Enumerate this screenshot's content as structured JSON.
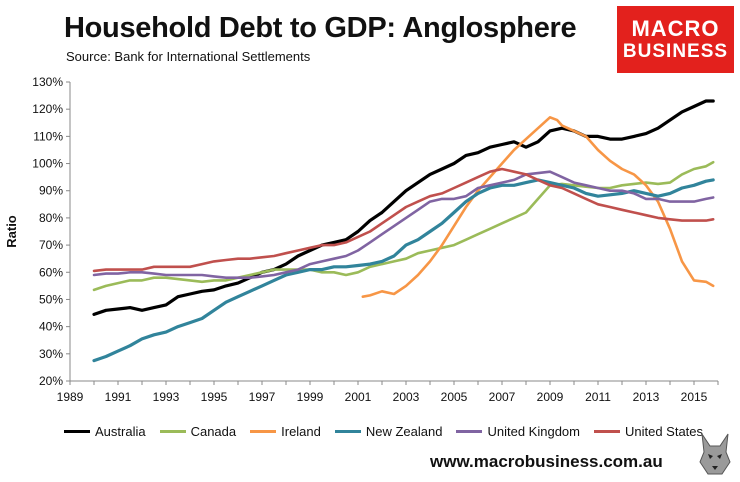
{
  "header": {
    "title": "Household Debt to GDP: Anglosphere",
    "subtitle": "Source: Bank for International Settlements"
  },
  "logo": {
    "line1": "MACRO",
    "line2": "BUSINESS",
    "color": "#e3211d"
  },
  "footer": {
    "url": "www.macrobusiness.com.au"
  },
  "chart_data": {
    "type": "line",
    "title": "Household Debt to GDP: Anglosphere",
    "xlabel": "",
    "ylabel": "Ratio",
    "xlim": [
      1989,
      2016
    ],
    "ylim": [
      20,
      130
    ],
    "x_ticks": [
      "1989",
      "1991",
      "1993",
      "1995",
      "1997",
      "1999",
      "2001",
      "2003",
      "2005",
      "2007",
      "2009",
      "2011",
      "2013",
      "2015"
    ],
    "y_ticks": [
      "20%",
      "30%",
      "40%",
      "50%",
      "60%",
      "70%",
      "80%",
      "90%",
      "100%",
      "110%",
      "120%",
      "130%"
    ],
    "grid": false,
    "legend": "bottom",
    "series": [
      {
        "name": "Australia",
        "color": "#000000",
        "width": 3.2,
        "points": [
          [
            1990,
            44.5
          ],
          [
            1990.5,
            46
          ],
          [
            1991,
            46.5
          ],
          [
            1991.5,
            47
          ],
          [
            1992,
            46
          ],
          [
            1992.5,
            47
          ],
          [
            1993,
            48
          ],
          [
            1993.5,
            51
          ],
          [
            1994,
            52
          ],
          [
            1994.5,
            53
          ],
          [
            1995,
            53.5
          ],
          [
            1995.5,
            55
          ],
          [
            1996,
            56
          ],
          [
            1996.5,
            58
          ],
          [
            1997,
            60
          ],
          [
            1997.5,
            61
          ],
          [
            1998,
            63
          ],
          [
            1998.5,
            66
          ],
          [
            1999,
            68
          ],
          [
            1999.5,
            70
          ],
          [
            2000,
            71
          ],
          [
            2000.5,
            72
          ],
          [
            2001,
            75
          ],
          [
            2001.5,
            79
          ],
          [
            2002,
            82
          ],
          [
            2002.5,
            86
          ],
          [
            2003,
            90
          ],
          [
            2003.5,
            93
          ],
          [
            2004,
            96
          ],
          [
            2004.5,
            98
          ],
          [
            2005,
            100
          ],
          [
            2005.5,
            103
          ],
          [
            2006,
            104
          ],
          [
            2006.5,
            106
          ],
          [
            2007,
            107
          ],
          [
            2007.5,
            108
          ],
          [
            2008,
            106
          ],
          [
            2008.5,
            108
          ],
          [
            2009,
            112
          ],
          [
            2009.5,
            113
          ],
          [
            2010,
            112
          ],
          [
            2010.5,
            110
          ],
          [
            2011,
            110
          ],
          [
            2011.5,
            109
          ],
          [
            2012,
            109
          ],
          [
            2012.5,
            110
          ],
          [
            2013,
            111
          ],
          [
            2013.5,
            113
          ],
          [
            2014,
            116
          ],
          [
            2014.5,
            119
          ],
          [
            2015,
            121
          ],
          [
            2015.5,
            123
          ],
          [
            2015.8,
            123
          ]
        ]
      },
      {
        "name": "Canada",
        "color": "#9bbb59",
        "width": 2.6,
        "points": [
          [
            1990,
            53.5
          ],
          [
            1990.5,
            55
          ],
          [
            1991,
            56
          ],
          [
            1991.5,
            57
          ],
          [
            1992,
            57
          ],
          [
            1992.5,
            58
          ],
          [
            1993,
            58
          ],
          [
            1993.5,
            57.5
          ],
          [
            1994,
            57
          ],
          [
            1994.5,
            56.5
          ],
          [
            1995,
            57
          ],
          [
            1995.5,
            57
          ],
          [
            1996,
            58
          ],
          [
            1996.5,
            59
          ],
          [
            1997,
            60
          ],
          [
            1997.5,
            61
          ],
          [
            1998,
            61
          ],
          [
            1998.5,
            61
          ],
          [
            1999,
            61
          ],
          [
            1999.5,
            60
          ],
          [
            2000,
            60
          ],
          [
            2000.5,
            59
          ],
          [
            2001,
            60
          ],
          [
            2001.5,
            62
          ],
          [
            2002,
            63
          ],
          [
            2002.5,
            64
          ],
          [
            2003,
            65
          ],
          [
            2003.5,
            67
          ],
          [
            2004,
            68
          ],
          [
            2004.5,
            69
          ],
          [
            2005,
            70
          ],
          [
            2005.5,
            72
          ],
          [
            2006,
            74
          ],
          [
            2006.5,
            76
          ],
          [
            2007,
            78
          ],
          [
            2007.5,
            80
          ],
          [
            2008,
            82
          ],
          [
            2008.5,
            87
          ],
          [
            2009,
            92
          ],
          [
            2009.5,
            92.5
          ],
          [
            2010,
            92
          ],
          [
            2010.5,
            91.5
          ],
          [
            2011,
            91
          ],
          [
            2011.5,
            91
          ],
          [
            2012,
            92
          ],
          [
            2012.5,
            92.5
          ],
          [
            2013,
            93
          ],
          [
            2013.5,
            92.5
          ],
          [
            2014,
            93
          ],
          [
            2014.5,
            96
          ],
          [
            2015,
            98
          ],
          [
            2015.5,
            99
          ],
          [
            2015.8,
            100.5
          ]
        ]
      },
      {
        "name": "Ireland",
        "color": "#f79646",
        "width": 2.6,
        "points": [
          [
            2001.2,
            51
          ],
          [
            2001.5,
            51.5
          ],
          [
            2002,
            53
          ],
          [
            2002.5,
            52
          ],
          [
            2003,
            55
          ],
          [
            2003.5,
            59
          ],
          [
            2004,
            64
          ],
          [
            2004.5,
            70
          ],
          [
            2005,
            77
          ],
          [
            2005.5,
            84
          ],
          [
            2006,
            90
          ],
          [
            2006.5,
            95
          ],
          [
            2007,
            100
          ],
          [
            2007.5,
            105
          ],
          [
            2008,
            109
          ],
          [
            2008.5,
            113
          ],
          [
            2009,
            117
          ],
          [
            2009.3,
            116
          ],
          [
            2009.5,
            114
          ],
          [
            2010,
            112
          ],
          [
            2010.5,
            110
          ],
          [
            2011,
            105
          ],
          [
            2011.5,
            101
          ],
          [
            2012,
            98
          ],
          [
            2012.5,
            96
          ],
          [
            2013,
            92
          ],
          [
            2013.5,
            86
          ],
          [
            2014,
            76
          ],
          [
            2014.5,
            64
          ],
          [
            2015,
            57
          ],
          [
            2015.5,
            56.5
          ],
          [
            2015.8,
            55
          ]
        ]
      },
      {
        "name": "New Zealand",
        "color": "#31849b",
        "width": 3.2,
        "points": [
          [
            1990,
            27.5
          ],
          [
            1990.5,
            29
          ],
          [
            1991,
            31
          ],
          [
            1991.5,
            33
          ],
          [
            1992,
            35.5
          ],
          [
            1992.5,
            37
          ],
          [
            1993,
            38
          ],
          [
            1993.5,
            40
          ],
          [
            1994,
            41.5
          ],
          [
            1994.5,
            43
          ],
          [
            1995,
            46
          ],
          [
            1995.5,
            49
          ],
          [
            1996,
            51
          ],
          [
            1996.5,
            53
          ],
          [
            1997,
            55
          ],
          [
            1997.5,
            57
          ],
          [
            1998,
            59
          ],
          [
            1998.5,
            60
          ],
          [
            1999,
            61
          ],
          [
            1999.5,
            61
          ],
          [
            2000,
            62
          ],
          [
            2000.5,
            62
          ],
          [
            2001,
            62.5
          ],
          [
            2001.5,
            63
          ],
          [
            2002,
            64
          ],
          [
            2002.5,
            66
          ],
          [
            2003,
            70
          ],
          [
            2003.5,
            72
          ],
          [
            2004,
            75
          ],
          [
            2004.5,
            78
          ],
          [
            2005,
            82
          ],
          [
            2005.5,
            86
          ],
          [
            2006,
            89
          ],
          [
            2006.5,
            91
          ],
          [
            2007,
            92
          ],
          [
            2007.5,
            92
          ],
          [
            2008,
            93
          ],
          [
            2008.5,
            94
          ],
          [
            2009,
            93
          ],
          [
            2009.5,
            92
          ],
          [
            2010,
            91
          ],
          [
            2010.5,
            89
          ],
          [
            2011,
            88
          ],
          [
            2011.5,
            88.5
          ],
          [
            2012,
            89
          ],
          [
            2012.5,
            90
          ],
          [
            2013,
            89
          ],
          [
            2013.5,
            88
          ],
          [
            2014,
            89
          ],
          [
            2014.5,
            91
          ],
          [
            2015,
            92
          ],
          [
            2015.5,
            93.5
          ],
          [
            2015.8,
            94
          ]
        ]
      },
      {
        "name": "United Kingdom",
        "color": "#8064a2",
        "width": 2.6,
        "points": [
          [
            1990,
            59
          ],
          [
            1990.5,
            59.5
          ],
          [
            1991,
            59.5
          ],
          [
            1991.5,
            60
          ],
          [
            1992,
            60
          ],
          [
            1992.5,
            59.5
          ],
          [
            1993,
            59
          ],
          [
            1993.5,
            59
          ],
          [
            1994,
            59
          ],
          [
            1994.5,
            59
          ],
          [
            1995,
            58.5
          ],
          [
            1995.5,
            58
          ],
          [
            1996,
            58
          ],
          [
            1996.5,
            58
          ],
          [
            1997,
            58.5
          ],
          [
            1997.5,
            59
          ],
          [
            1998,
            60
          ],
          [
            1998.5,
            61
          ],
          [
            1999,
            63
          ],
          [
            1999.5,
            64
          ],
          [
            2000,
            65
          ],
          [
            2000.5,
            66
          ],
          [
            2001,
            68
          ],
          [
            2001.5,
            71
          ],
          [
            2002,
            74
          ],
          [
            2002.5,
            77
          ],
          [
            2003,
            80
          ],
          [
            2003.5,
            83
          ],
          [
            2004,
            86
          ],
          [
            2004.5,
            87
          ],
          [
            2005,
            87
          ],
          [
            2005.5,
            88
          ],
          [
            2006,
            91
          ],
          [
            2006.5,
            92
          ],
          [
            2007,
            93
          ],
          [
            2007.5,
            94
          ],
          [
            2008,
            96
          ],
          [
            2008.5,
            96.5
          ],
          [
            2009,
            97
          ],
          [
            2009.5,
            95
          ],
          [
            2010,
            93
          ],
          [
            2010.5,
            92
          ],
          [
            2011,
            91
          ],
          [
            2011.5,
            90
          ],
          [
            2012,
            90
          ],
          [
            2012.5,
            89
          ],
          [
            2013,
            87
          ],
          [
            2013.5,
            87
          ],
          [
            2014,
            86
          ],
          [
            2014.5,
            86
          ],
          [
            2015,
            86
          ],
          [
            2015.5,
            87
          ],
          [
            2015.8,
            87.5
          ]
        ]
      },
      {
        "name": "United States",
        "color": "#c0504d",
        "width": 2.6,
        "points": [
          [
            1990,
            60.5
          ],
          [
            1990.5,
            61
          ],
          [
            1991,
            61
          ],
          [
            1991.5,
            61
          ],
          [
            1992,
            61
          ],
          [
            1992.5,
            62
          ],
          [
            1993,
            62
          ],
          [
            1993.5,
            62
          ],
          [
            1994,
            62
          ],
          [
            1994.5,
            63
          ],
          [
            1995,
            64
          ],
          [
            1995.5,
            64.5
          ],
          [
            1996,
            65
          ],
          [
            1996.5,
            65
          ],
          [
            1997,
            65.5
          ],
          [
            1997.5,
            66
          ],
          [
            1998,
            67
          ],
          [
            1998.5,
            68
          ],
          [
            1999,
            69
          ],
          [
            1999.5,
            70
          ],
          [
            2000,
            70
          ],
          [
            2000.5,
            71
          ],
          [
            2001,
            73
          ],
          [
            2001.5,
            75
          ],
          [
            2002,
            78
          ],
          [
            2002.5,
            81
          ],
          [
            2003,
            84
          ],
          [
            2003.5,
            86
          ],
          [
            2004,
            88
          ],
          [
            2004.5,
            89
          ],
          [
            2005,
            91
          ],
          [
            2005.5,
            93
          ],
          [
            2006,
            95
          ],
          [
            2006.5,
            97
          ],
          [
            2007,
            98
          ],
          [
            2007.5,
            97
          ],
          [
            2008,
            96
          ],
          [
            2008.5,
            94
          ],
          [
            2009,
            92
          ],
          [
            2009.5,
            91
          ],
          [
            2010,
            89
          ],
          [
            2010.5,
            87
          ],
          [
            2011,
            85
          ],
          [
            2011.5,
            84
          ],
          [
            2012,
            83
          ],
          [
            2012.5,
            82
          ],
          [
            2013,
            81
          ],
          [
            2013.5,
            80
          ],
          [
            2014,
            79.5
          ],
          [
            2014.5,
            79
          ],
          [
            2015,
            79
          ],
          [
            2015.5,
            79
          ],
          [
            2015.8,
            79.5
          ]
        ]
      }
    ]
  }
}
